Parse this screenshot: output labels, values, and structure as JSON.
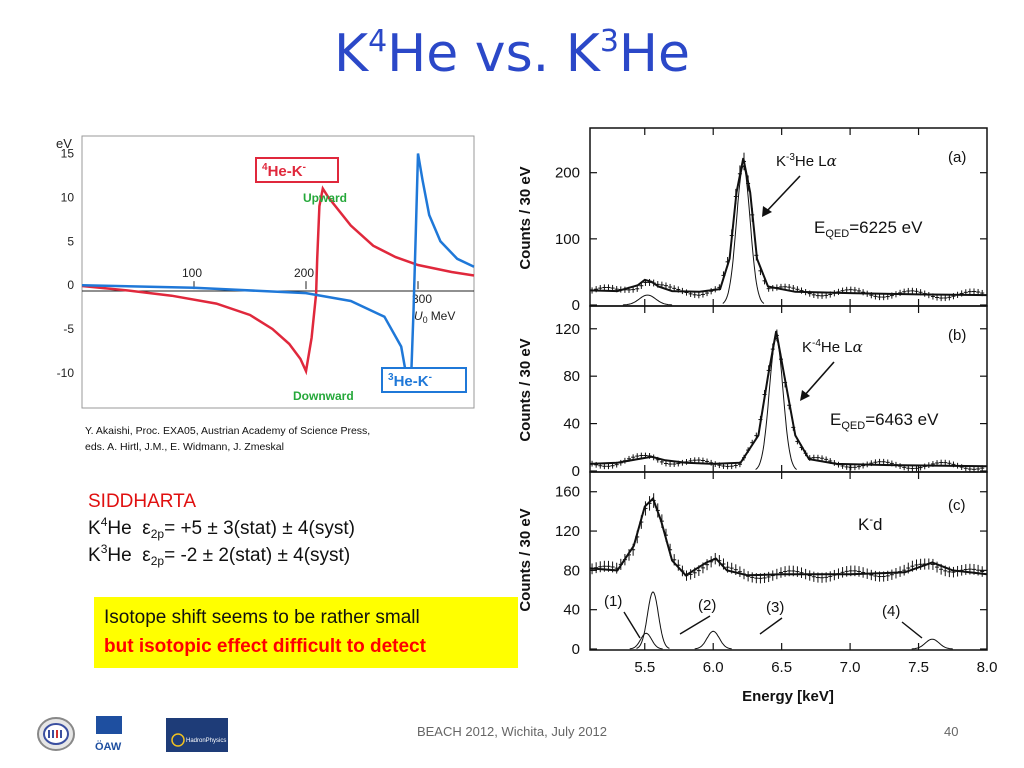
{
  "slide": {
    "title_parts": [
      "K",
      "4",
      "He vs. K",
      "3",
      "He"
    ],
    "footer": "BEACH 2012, Wichita, July 2012",
    "page_number": "40"
  },
  "citation": {
    "line1": "Y. Akaishi, Proc. EXA05, Austrian Academy of Science Press,",
    "line2": "eds. A. Hirtl, J.M., E. Widmann, J. Zmeskal"
  },
  "results": {
    "heading": "SIDDHARTA",
    "k4": {
      "prefix": "K",
      "mass": "4",
      "element": "He",
      "eps": "ε",
      "sub": "2p",
      "value": "= +5 ± 3(stat) ± 4(syst)"
    },
    "k3": {
      "prefix": "K",
      "mass": "3",
      "element": "He",
      "eps": "ε",
      "sub": "2p",
      "value": "= -2 ± 2(stat) ± 4(syst)"
    }
  },
  "callout": {
    "line1": "Isotope shift  seems to be rather small",
    "line2": "but isotopic effect difficult to detect",
    "background": "#ffff00",
    "line2_color": "#ff0000"
  },
  "logos": [
    "SMI logo",
    "ÖAW",
    "HadronPhysics"
  ],
  "chart_data": [
    {
      "type": "line",
      "title": "",
      "ylabel": "eV",
      "xlabel_main": "U",
      "xlabel_sub": "0",
      "xlabel_unit": "MeV",
      "xlim": [
        0,
        350
      ],
      "ylim": [
        -14,
        17
      ],
      "xticks": [
        100,
        200,
        300
      ],
      "yticks": [
        15,
        10,
        5,
        0,
        -5,
        -10
      ],
      "grid": false,
      "series": [
        {
          "name": "4He-K-",
          "label_main": "He-K",
          "label_mass": "4",
          "label_charge": "-",
          "color": "#e0283c",
          "x": [
            0,
            40,
            80,
            120,
            150,
            170,
            185,
            195,
            200,
            205,
            209,
            210,
            212,
            215,
            220,
            240,
            260,
            280,
            300,
            330,
            350
          ],
          "y": [
            -0.1,
            -0.6,
            -1.2,
            -2.1,
            -3.4,
            -5.0,
            -6.7,
            -8.4,
            -9.8,
            -6.0,
            -1.0,
            3.0,
            9.0,
            11.0,
            10.0,
            6.8,
            4.5,
            3.2,
            2.3,
            1.5,
            1.1
          ]
        },
        {
          "name": "3He-K-",
          "label_main": "He-K",
          "label_mass": "3",
          "label_charge": "-",
          "color": "#1f78d8",
          "x": [
            0,
            100,
            200,
            240,
            270,
            285,
            292,
            294,
            296,
            298,
            300,
            304,
            310,
            320,
            335,
            350
          ],
          "y": [
            0,
            -0.3,
            -0.9,
            -1.8,
            -3.6,
            -7.0,
            -12.0,
            -10.0,
            -3.0,
            6.0,
            15.0,
            12.0,
            8.0,
            5.0,
            3.0,
            2.1
          ]
        }
      ],
      "annotations": [
        "Upward",
        "Downward"
      ]
    },
    {
      "type": "line",
      "panel": "(a)",
      "xlim": [
        5.1,
        8.0
      ],
      "ylim": [
        0,
        260
      ],
      "yticks": [
        0,
        100,
        200
      ],
      "ylabel": "Counts / 30 eV",
      "peak_label": "K-3He Lα",
      "peak_label_parts": {
        "k": "K",
        "dash": "-",
        "mass": "3",
        "rest": "He L",
        "alpha": "α"
      },
      "energy_text": "=6225 eV",
      "energy_sym": "E",
      "energy_sub": "QED",
      "series": [
        {
          "name": "fit",
          "x": [
            5.1,
            5.3,
            5.45,
            5.5,
            5.55,
            5.6,
            5.7,
            5.9,
            6.05,
            6.12,
            6.17,
            6.22,
            6.27,
            6.32,
            6.4,
            6.6,
            7.0,
            7.5,
            8.0
          ],
          "y": [
            22,
            21,
            30,
            38,
            35,
            28,
            21,
            20,
            24,
            70,
            170,
            222,
            170,
            70,
            28,
            20,
            18,
            16,
            15
          ]
        }
      ]
    },
    {
      "type": "line",
      "panel": "(b)",
      "xlim": [
        5.1,
        8.0
      ],
      "ylim": [
        0,
        135
      ],
      "yticks": [
        0,
        40,
        80,
        120
      ],
      "ylabel": "Counts / 30 eV",
      "peak_label_parts": {
        "k": "K",
        "dash": "-",
        "mass": "4",
        "rest": "He L",
        "alpha": "α"
      },
      "energy_text": "=6463 eV",
      "energy_sym": "E",
      "energy_sub": "QED",
      "series": [
        {
          "name": "fit",
          "x": [
            5.1,
            5.3,
            5.45,
            5.55,
            5.65,
            5.8,
            6.0,
            6.2,
            6.33,
            6.4,
            6.46,
            6.52,
            6.6,
            6.7,
            6.9,
            7.3,
            8.0
          ],
          "y": [
            6,
            7,
            10,
            12,
            9,
            7,
            6,
            7,
            30,
            80,
            118,
            80,
            30,
            10,
            6,
            5,
            4
          ]
        }
      ]
    },
    {
      "type": "line",
      "panel": "(c)",
      "xlim": [
        5.1,
        8.0
      ],
      "ylim": [
        0,
        175
      ],
      "xticks": [
        5.5,
        6.0,
        6.5,
        7.0,
        7.5,
        8.0
      ],
      "yticks": [
        0,
        40,
        80,
        120,
        160
      ],
      "xlabel": "Energy [keV]",
      "ylabel": "Counts / 30 eV",
      "kd_label": {
        "k": "K",
        "charge": "-",
        "rest": "d"
      },
      "peak_labels": [
        "(1)",
        "(2)",
        "(3)",
        "(4)"
      ],
      "series": [
        {
          "name": "fit",
          "x": [
            5.1,
            5.3,
            5.42,
            5.5,
            5.56,
            5.62,
            5.7,
            5.8,
            5.95,
            6.02,
            6.1,
            6.25,
            6.5,
            7.0,
            7.4,
            7.6,
            7.75,
            8.0
          ],
          "y": [
            82,
            80,
            105,
            145,
            153,
            130,
            90,
            75,
            88,
            92,
            80,
            75,
            76,
            76,
            78,
            88,
            80,
            76
          ]
        }
      ]
    }
  ]
}
